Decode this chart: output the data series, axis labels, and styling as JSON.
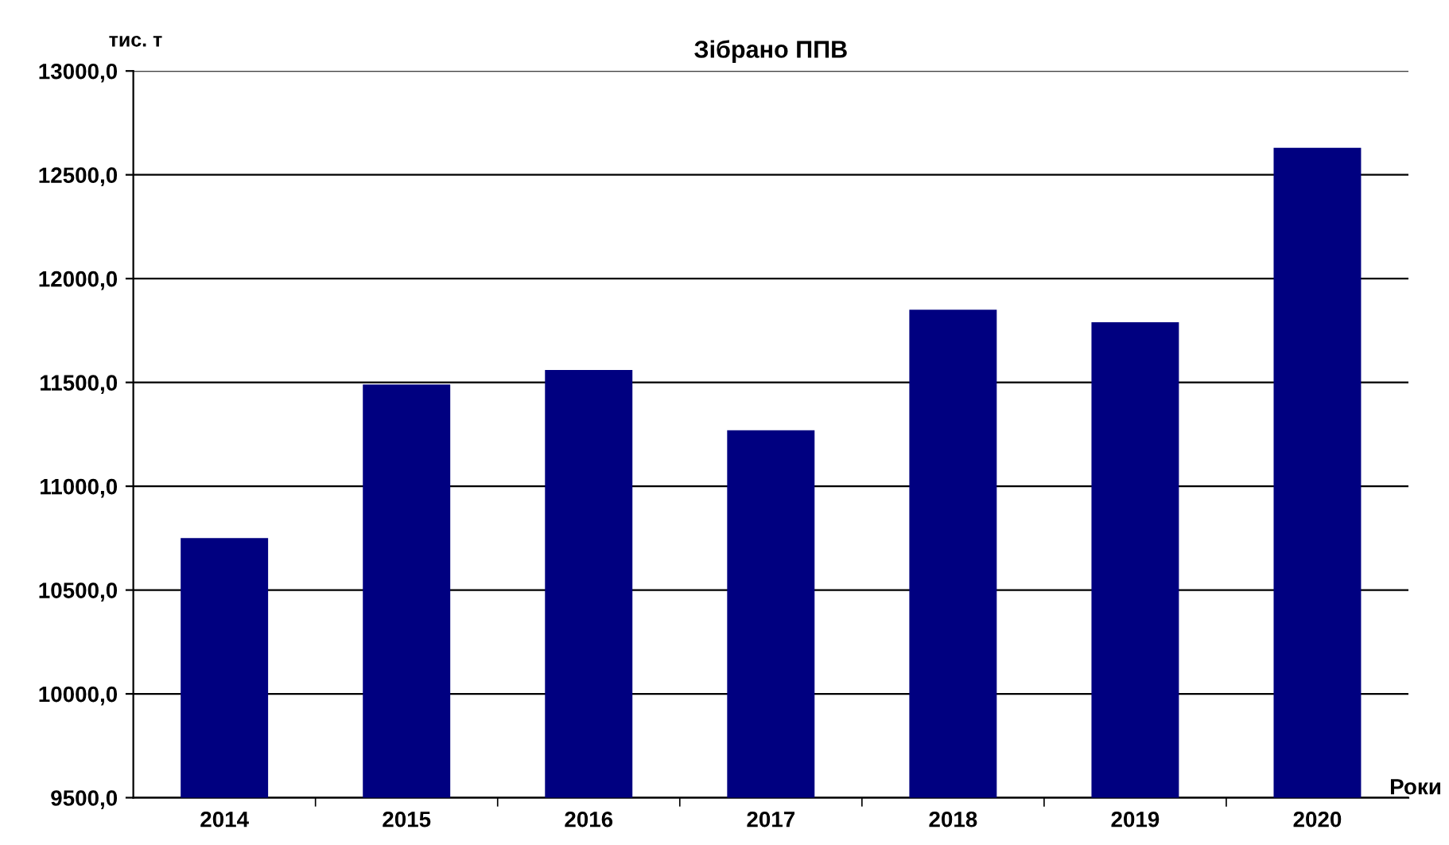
{
  "chart_data": {
    "type": "bar",
    "title": "Зібрано ППВ",
    "ylabel": "тис. т",
    "xlabel": "Роки",
    "categories": [
      "2014",
      "2015",
      "2016",
      "2017",
      "2018",
      "2019",
      "2020"
    ],
    "series": [
      {
        "color": "#000080",
        "values": [
          10750,
          11490,
          11560,
          11270,
          11850,
          11790,
          12630
        ]
      }
    ],
    "ylim": [
      9500,
      13000
    ],
    "yticks": [
      {
        "value": 9500,
        "label": "9500,0"
      },
      {
        "value": 10000,
        "label": "10000,0"
      },
      {
        "value": 10500,
        "label": "10500,0"
      },
      {
        "value": 11000,
        "label": "11000,0"
      },
      {
        "value": 11500,
        "label": "11500,0"
      },
      {
        "value": 12000,
        "label": "12000,0"
      },
      {
        "value": 12500,
        "label": "12500,0"
      },
      {
        "value": 13000,
        "label": "13000,0"
      }
    ],
    "grid": "y"
  }
}
